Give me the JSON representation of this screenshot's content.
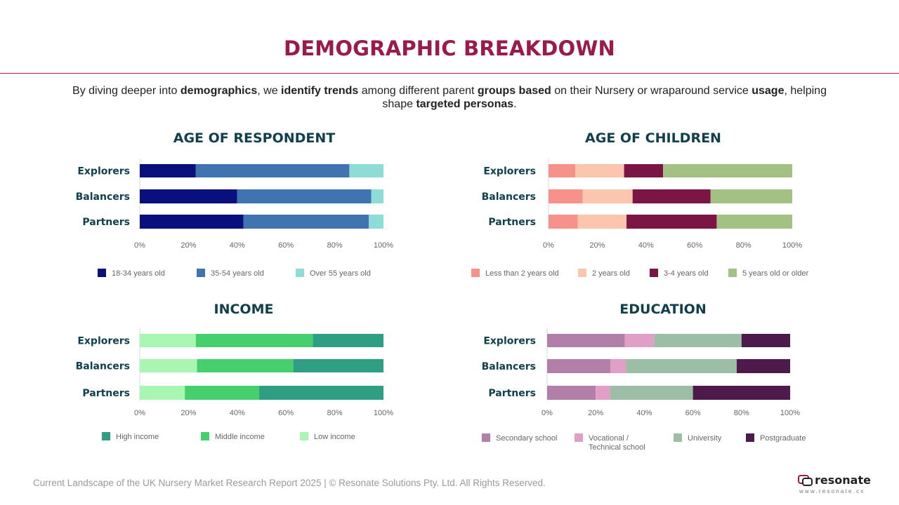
{
  "title": "DEMOGRAPHIC BREAKDOWN",
  "intro": [
    {
      "t": "By diving deeper into ",
      "b": false
    },
    {
      "t": "demographics",
      "b": true
    },
    {
      "t": ", we ",
      "b": false
    },
    {
      "t": "identify trends",
      "b": true
    },
    {
      "t": " among different parent ",
      "b": false
    },
    {
      "t": "groups based",
      "b": true
    },
    {
      "t": " on their Nursery or wraparound service ",
      "b": false
    },
    {
      "t": "usage",
      "b": true
    },
    {
      "t": ", helping shape ",
      "b": false
    },
    {
      "t": "targeted personas",
      "b": true
    },
    {
      "t": ".",
      "b": false
    }
  ],
  "chart_data": [
    {
      "type": "bar",
      "orientation": "horizontal",
      "stacked": true,
      "title": "AGE OF RESPONDENT",
      "categories": [
        "Explorers",
        "Balancers",
        "Partners"
      ],
      "series": [
        {
          "name": "18-34 years old",
          "color": "#0a0f7e",
          "values": [
            23,
            40,
            42.5
          ]
        },
        {
          "name": "35-54 years old",
          "color": "#3f74b0",
          "values": [
            63,
            55,
            51.5
          ]
        },
        {
          "name": "Over 55 years old",
          "color": "#8ddcd6",
          "values": [
            14,
            5,
            6
          ]
        }
      ],
      "xticks": [
        "0%",
        "20%",
        "40%",
        "60%",
        "80%",
        "100%"
      ],
      "xlim": [
        0,
        100
      ],
      "legend": "bottom"
    },
    {
      "type": "bar",
      "orientation": "horizontal",
      "stacked": true,
      "title": "AGE OF CHILDREN",
      "categories": [
        "Explorers",
        "Balancers",
        "Partners"
      ],
      "series": [
        {
          "name": "Less than 2 years old",
          "color": "#f7928a",
          "values": [
            11,
            14,
            12
          ]
        },
        {
          "name": "2 years old",
          "color": "#fbc6ad",
          "values": [
            20,
            20.5,
            20
          ]
        },
        {
          "name": "3-4 years old",
          "color": "#7a1545",
          "values": [
            16,
            32,
            37
          ]
        },
        {
          "name": "5 years old or older",
          "color": "#a4c184",
          "values": [
            53,
            33.5,
            31
          ]
        }
      ],
      "xticks": [
        "0%",
        "20%",
        "40%",
        "60%",
        "80%",
        "100%"
      ],
      "xlim": [
        0,
        100
      ],
      "legend": "bottom"
    },
    {
      "type": "bar",
      "orientation": "horizontal",
      "stacked": true,
      "title": "INCOME",
      "categories": [
        "Explorers",
        "Balancers",
        "Partners"
      ],
      "series": [
        {
          "name": "Low income",
          "color": "#a9f5b2",
          "values": [
            23,
            23.5,
            18.5
          ]
        },
        {
          "name": "Middle income",
          "color": "#46cf6d",
          "values": [
            48,
            39.5,
            30.5
          ]
        },
        {
          "name": "High income",
          "color": "#2e9f82",
          "values": [
            29,
            37,
            51
          ]
        }
      ],
      "legend_order": [
        "High income",
        "Middle income",
        "Low income"
      ],
      "xticks": [
        "0%",
        "20%",
        "40%",
        "60%",
        "80%",
        "100%"
      ],
      "xlim": [
        0,
        100
      ],
      "legend": "bottom"
    },
    {
      "type": "bar",
      "orientation": "horizontal",
      "stacked": true,
      "title": "EDUCATION",
      "categories": [
        "Explorers",
        "Balancers",
        "Partners"
      ],
      "series": [
        {
          "name": "Secondary school",
          "color": "#b27fa8",
          "values": [
            32,
            26,
            20
          ]
        },
        {
          "name": "Vocational / Technical school",
          "color": "#df9fc6",
          "values": [
            12,
            6.5,
            6
          ]
        },
        {
          "name": "University",
          "color": "#9cbda6",
          "values": [
            36,
            45.5,
            34
          ]
        },
        {
          "name": "Postgraduate",
          "color": "#4e1a4c",
          "values": [
            20,
            22,
            40
          ]
        }
      ],
      "xticks": [
        "0%",
        "20%",
        "40%",
        "60%",
        "80%",
        "100%"
      ],
      "xlim": [
        0,
        100
      ],
      "legend": "bottom"
    }
  ],
  "footer": "Current Landscape of the UK Nursery Market Research Report 2025 | © Resonate Solutions Pty. Ltd. All Rights Reserved.",
  "logo": {
    "word": "resonate",
    "url": "www.resonate.cx"
  }
}
